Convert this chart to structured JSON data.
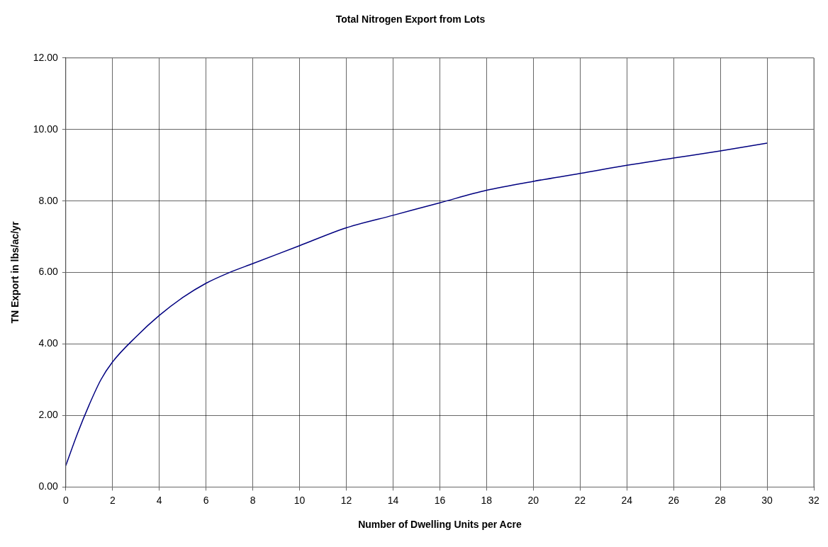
{
  "chart_data": {
    "type": "line",
    "title": "Total Nitrogen Export from Lots",
    "xlabel": "Number of Dwelling Units per Acre",
    "ylabel": "TN Export in lbs/ac/yr",
    "x": [
      0,
      0.5,
      1,
      1.5,
      2,
      3,
      4,
      5,
      6,
      7,
      8,
      10,
      12,
      14,
      16,
      18,
      20,
      22,
      24,
      26,
      28,
      30
    ],
    "series": [
      {
        "color": "#000080",
        "values": [
          0.6,
          1.5,
          2.3,
          3.0,
          3.5,
          4.2,
          4.8,
          5.3,
          5.7,
          6.0,
          6.25,
          6.75,
          7.25,
          7.6,
          7.95,
          8.3,
          8.55,
          8.77,
          9.0,
          9.2,
          9.4,
          9.62
        ]
      }
    ],
    "xlim": [
      0,
      32
    ],
    "xticks": [
      0,
      2,
      4,
      6,
      8,
      10,
      12,
      14,
      16,
      18,
      20,
      22,
      24,
      26,
      28,
      30,
      32
    ],
    "ylim": [
      0,
      12
    ],
    "yticks": [
      {
        "value": 0,
        "label": "0.00"
      },
      {
        "value": 2,
        "label": "2.00"
      },
      {
        "value": 4,
        "label": "4.00"
      },
      {
        "value": 6,
        "label": "6.00"
      },
      {
        "value": 8,
        "label": "8.00"
      },
      {
        "value": 10,
        "label": "10.00"
      },
      {
        "value": 12,
        "label": "12.00"
      }
    ],
    "grid": true,
    "legend": false,
    "marker": "none",
    "line_style": "solid"
  }
}
